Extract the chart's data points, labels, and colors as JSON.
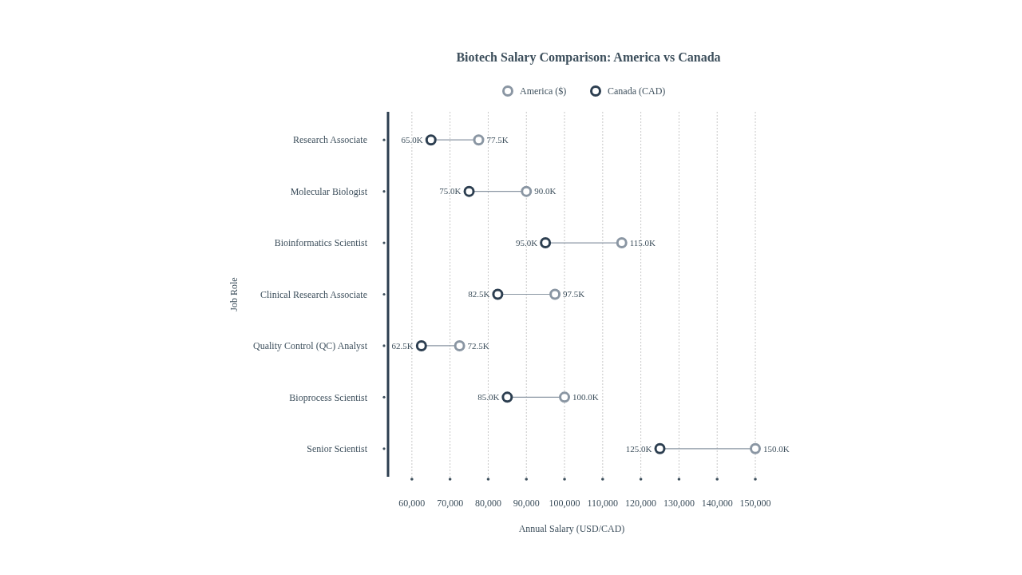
{
  "chart_data": {
    "type": "scatter",
    "orientation": "horizontal",
    "title": "Biotech Salary Comparison: America vs Canada",
    "xlabel": "Annual Salary (USD/CAD)",
    "ylabel": "Job Role",
    "categories": [
      "Research Associate",
      "Molecular Biologist",
      "Bioinformatics Scientist",
      "Clinical Research Associate",
      "Quality Control (QC) Analyst",
      "Bioprocess Scientist",
      "Senior Scientist"
    ],
    "series": [
      {
        "name": "America ($)",
        "color": "#8a96a3",
        "values": [
          77500,
          90000,
          115000,
          97500,
          72500,
          100000,
          150000
        ],
        "value_labels": [
          "77.5K",
          "90.0K",
          "115.0K",
          "97.5K",
          "72.5K",
          "100.0K",
          "150.0K"
        ]
      },
      {
        "name": "Canada (CAD)",
        "color": "#2c3e50",
        "values": [
          65000,
          75000,
          95000,
          82500,
          62500,
          85000,
          125000
        ],
        "value_labels": [
          "65.0K",
          "75.0K",
          "95.0K",
          "82.5K",
          "62.5K",
          "85.0K",
          "125.0K"
        ]
      }
    ],
    "xlim": [
      53750,
      150000
    ],
    "xticks": [
      {
        "value": 60000,
        "label": "60,000"
      },
      {
        "value": 70000,
        "label": "70,000"
      },
      {
        "value": 80000,
        "label": "80,000"
      },
      {
        "value": 90000,
        "label": "90,000"
      },
      {
        "value": 100000,
        "label": "100,000"
      },
      {
        "value": 110000,
        "label": "110,000"
      },
      {
        "value": 120000,
        "label": "120,000"
      },
      {
        "value": 130000,
        "label": "130,000"
      },
      {
        "value": 140000,
        "label": "140,000"
      },
      {
        "value": 150000,
        "label": "150,000"
      }
    ],
    "grid": "x",
    "legend": "top",
    "marker": "circle"
  }
}
